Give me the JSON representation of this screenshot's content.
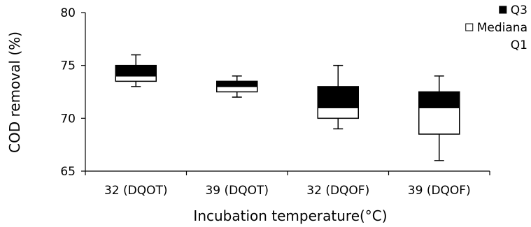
{
  "chart_data": {
    "type": "box",
    "xlabel": "Incubation temperature(°C)",
    "ylabel": "COD removal (%)",
    "ylim": [
      65,
      80
    ],
    "yticks": [
      65,
      70,
      75,
      80
    ],
    "grid": false,
    "legend_position": "top-right",
    "legend": [
      {
        "label": "Q3",
        "swatch": "filled"
      },
      {
        "label": "Mediana",
        "swatch": "outline"
      },
      {
        "label": "Q1",
        "swatch": "none"
      }
    ],
    "categories": [
      "32 (DQOT)",
      "39 (DQOT)",
      "32 (DQOF)",
      "39 (DQOF)"
    ],
    "boxes": [
      {
        "min": 73.0,
        "q1": 73.5,
        "median": 74.0,
        "q3": 75.0,
        "max": 76.0
      },
      {
        "min": 72.0,
        "q1": 72.5,
        "median": 73.0,
        "q3": 73.5,
        "max": 74.0
      },
      {
        "min": 69.0,
        "q1": 70.0,
        "median": 71.0,
        "q3": 73.0,
        "max": 75.0
      },
      {
        "min": 66.0,
        "q1": 68.5,
        "median": 71.0,
        "q3": 72.5,
        "max": 74.0
      }
    ],
    "colors": {
      "upper_box": "#000000",
      "lower_box": "#ffffff",
      "line": "#000000"
    }
  }
}
